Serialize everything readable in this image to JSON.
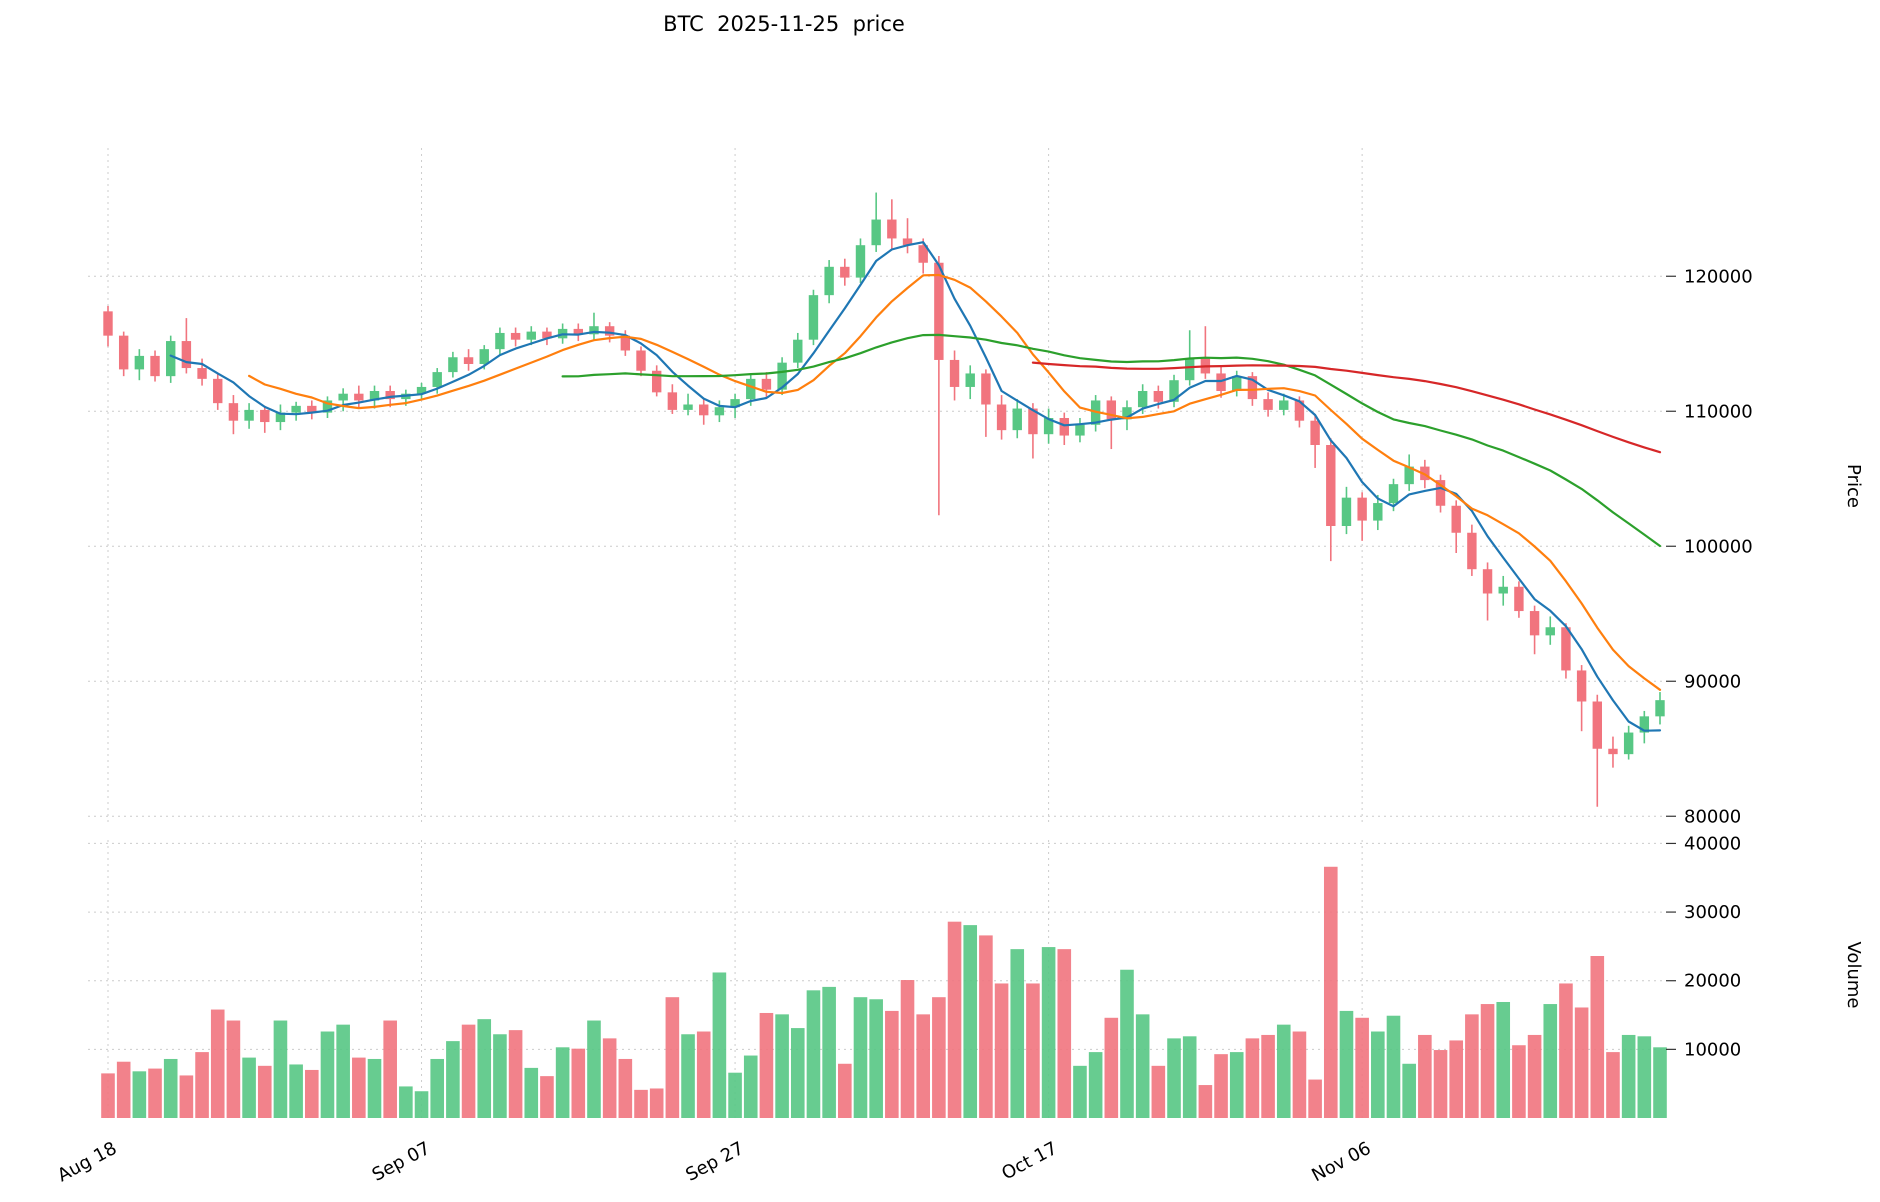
{
  "chart_data": {
    "type": "candlestick",
    "title": "BTC  2025-11-25  price",
    "price_axis_label": "Price",
    "volume_axis_label": "Volume",
    "price_ticks": [
      80000,
      90000,
      100000,
      110000,
      120000
    ],
    "volume_ticks": [
      10000,
      20000,
      30000,
      40000
    ],
    "x_ticks": [
      {
        "index": 0,
        "label": "Aug 18"
      },
      {
        "index": 20,
        "label": "Sep 07"
      },
      {
        "index": 40,
        "label": "Sep 27"
      },
      {
        "index": 60,
        "label": "Oct 17"
      },
      {
        "index": 80,
        "label": "Nov 06"
      }
    ],
    "price_axis_range": [
      79500,
      129500
    ],
    "volume_axis_range": [
      0,
      40500
    ],
    "grid": true,
    "legend": "none",
    "moving_averages": [
      {
        "name": "MA5",
        "window": 5,
        "color": "#1f77b4"
      },
      {
        "name": "MA10",
        "window": 10,
        "color": "#ff7f0e"
      },
      {
        "name": "MA30",
        "window": 30,
        "color": "#2ca02c"
      },
      {
        "name": "MA60",
        "window": 60,
        "color": "#d62728"
      }
    ],
    "colors": {
      "up": "#57c784",
      "down": "#f1747e",
      "grid": "#cccccc",
      "text": "#000000"
    },
    "columns": [
      "date",
      "open",
      "high",
      "low",
      "close",
      "volume"
    ],
    "ohlcv": [
      [
        "2025-08-18",
        117400,
        117800,
        114800,
        115600,
        6500
      ],
      [
        "2025-08-19",
        115600,
        115900,
        112600,
        113100,
        8200
      ],
      [
        "2025-08-20",
        113100,
        114600,
        112300,
        114100,
        6800
      ],
      [
        "2025-08-21",
        114100,
        114500,
        112200,
        112600,
        7200
      ],
      [
        "2025-08-22",
        112600,
        115600,
        112100,
        115200,
        8600
      ],
      [
        "2025-08-23",
        115200,
        116900,
        112800,
        113200,
        6200
      ],
      [
        "2025-08-24",
        113200,
        113900,
        111900,
        112400,
        9600
      ],
      [
        "2025-08-25",
        112400,
        112800,
        110100,
        110600,
        15800
      ],
      [
        "2025-08-26",
        110600,
        111200,
        108300,
        109300,
        14200
      ],
      [
        "2025-08-27",
        109300,
        110600,
        108700,
        110100,
        8800
      ],
      [
        "2025-08-28",
        110100,
        110400,
        108400,
        109200,
        7600
      ],
      [
        "2025-08-29",
        109200,
        110500,
        108600,
        109900,
        14200
      ],
      [
        "2025-08-30",
        109900,
        110700,
        109300,
        110400,
        7800
      ],
      [
        "2025-08-31",
        110400,
        110800,
        109400,
        109900,
        7000
      ],
      [
        "2025-09-01",
        109900,
        111100,
        109500,
        110800,
        12600
      ],
      [
        "2025-09-02",
        110800,
        111700,
        110000,
        111300,
        13600
      ],
      [
        "2025-09-03",
        111300,
        111900,
        110300,
        110800,
        8800
      ],
      [
        "2025-09-04",
        110800,
        111900,
        110200,
        111500,
        8600
      ],
      [
        "2025-09-05",
        111500,
        111900,
        110300,
        110900,
        14200
      ],
      [
        "2025-09-06",
        110900,
        111600,
        110400,
        111300,
        4600
      ],
      [
        "2025-09-07",
        111300,
        112100,
        110800,
        111800,
        3900
      ],
      [
        "2025-09-08",
        111800,
        113200,
        111300,
        112900,
        8600
      ],
      [
        "2025-09-09",
        112900,
        114400,
        112500,
        114000,
        11200
      ],
      [
        "2025-09-10",
        114000,
        114600,
        113000,
        113500,
        13600
      ],
      [
        "2025-09-11",
        113500,
        114900,
        113100,
        114600,
        14400
      ],
      [
        "2025-09-12",
        114600,
        116200,
        114200,
        115800,
        12200
      ],
      [
        "2025-09-13",
        115800,
        116200,
        114800,
        115300,
        12800
      ],
      [
        "2025-09-14",
        115300,
        116300,
        114900,
        115900,
        7300
      ],
      [
        "2025-09-15",
        115900,
        116200,
        114900,
        115400,
        6100
      ],
      [
        "2025-09-16",
        115400,
        116500,
        115000,
        116100,
        10300
      ],
      [
        "2025-09-17",
        116100,
        116500,
        115200,
        115700,
        10100
      ],
      [
        "2025-09-18",
        115700,
        117300,
        115300,
        116300,
        14200
      ],
      [
        "2025-09-19",
        116300,
        116600,
        115100,
        115600,
        11600
      ],
      [
        "2025-09-20",
        115600,
        116000,
        114100,
        114500,
        8600
      ],
      [
        "2025-09-21",
        114500,
        114800,
        112600,
        113000,
        4100
      ],
      [
        "2025-09-22",
        113000,
        113400,
        111100,
        111400,
        4300
      ],
      [
        "2025-09-23",
        111400,
        112000,
        109800,
        110100,
        17600
      ],
      [
        "2025-09-24",
        110100,
        111300,
        109700,
        110500,
        12200
      ],
      [
        "2025-09-25",
        110500,
        110900,
        109000,
        109700,
        12600
      ],
      [
        "2025-09-26",
        109700,
        110800,
        109200,
        110300,
        21200
      ],
      [
        "2025-09-27",
        110300,
        111300,
        109500,
        110900,
        6600
      ],
      [
        "2025-09-28",
        110900,
        112700,
        110400,
        112400,
        9100
      ],
      [
        "2025-09-29",
        112400,
        112900,
        111000,
        111600,
        15300
      ],
      [
        "2025-09-30",
        111600,
        114000,
        111200,
        113600,
        15100
      ],
      [
        "2025-10-01",
        113600,
        115800,
        113200,
        115300,
        13100
      ],
      [
        "2025-10-02",
        115300,
        119000,
        114900,
        118600,
        18600
      ],
      [
        "2025-10-03",
        118600,
        121200,
        118000,
        120700,
        19100
      ],
      [
        "2025-10-04",
        120700,
        121300,
        119300,
        119900,
        7900
      ],
      [
        "2025-10-05",
        119900,
        122800,
        119500,
        122300,
        17600
      ],
      [
        "2025-10-06",
        122300,
        126200,
        121800,
        124200,
        17300
      ],
      [
        "2025-10-07",
        124200,
        125700,
        122000,
        122800,
        15600
      ],
      [
        "2025-10-08",
        122800,
        124300,
        121700,
        122300,
        20100
      ],
      [
        "2025-10-09",
        122300,
        122800,
        120200,
        121000,
        15100
      ],
      [
        "2025-10-10",
        121000,
        121500,
        102300,
        113800,
        17600
      ],
      [
        "2025-10-11",
        113800,
        114500,
        110800,
        111800,
        28600
      ],
      [
        "2025-10-12",
        111800,
        113400,
        110900,
        112800,
        28100
      ],
      [
        "2025-10-13",
        112800,
        113100,
        108100,
        110500,
        26600
      ],
      [
        "2025-10-14",
        110500,
        111200,
        107900,
        108600,
        19600
      ],
      [
        "2025-10-15",
        108600,
        110900,
        108000,
        110200,
        24600
      ],
      [
        "2025-10-16",
        110200,
        110600,
        106500,
        108300,
        19600
      ],
      [
        "2025-10-17",
        108300,
        110200,
        107600,
        109500,
        24900
      ],
      [
        "2025-10-18",
        109500,
        109900,
        107500,
        108200,
        24600
      ],
      [
        "2025-10-19",
        108200,
        109500,
        107700,
        109000,
        7600
      ],
      [
        "2025-10-20",
        109000,
        111200,
        108500,
        110800,
        9600
      ],
      [
        "2025-10-21",
        110800,
        111100,
        107200,
        109400,
        14600
      ],
      [
        "2025-10-22",
        109400,
        110800,
        108600,
        110300,
        21600
      ],
      [
        "2025-10-23",
        110300,
        112000,
        109800,
        111500,
        15100
      ],
      [
        "2025-10-24",
        111500,
        111900,
        110200,
        110700,
        7600
      ],
      [
        "2025-10-25",
        110700,
        112700,
        110300,
        112300,
        11600
      ],
      [
        "2025-10-26",
        112300,
        116000,
        111900,
        113900,
        11900
      ],
      [
        "2025-10-27",
        113900,
        116300,
        112400,
        112800,
        4800
      ],
      [
        "2025-10-28",
        112800,
        113300,
        111000,
        111500,
        9300
      ],
      [
        "2025-10-29",
        111500,
        113000,
        111100,
        112600,
        9600
      ],
      [
        "2025-10-30",
        112600,
        112900,
        110400,
        110900,
        11600
      ],
      [
        "2025-10-31",
        110900,
        111400,
        109600,
        110100,
        12100
      ],
      [
        "2025-11-01",
        110100,
        111300,
        109700,
        110800,
        13600
      ],
      [
        "2025-11-02",
        110800,
        111100,
        108800,
        109300,
        12600
      ],
      [
        "2025-11-03",
        109300,
        109700,
        105800,
        107500,
        5600
      ],
      [
        "2025-11-04",
        107500,
        108000,
        98900,
        101500,
        36600
      ],
      [
        "2025-11-05",
        101500,
        104400,
        100900,
        103600,
        15600
      ],
      [
        "2025-11-06",
        103600,
        104000,
        100400,
        101900,
        14600
      ],
      [
        "2025-11-07",
        101900,
        103800,
        101200,
        103200,
        12600
      ],
      [
        "2025-11-08",
        103200,
        105000,
        102600,
        104600,
        14900
      ],
      [
        "2025-11-09",
        104600,
        106800,
        104100,
        105900,
        7900
      ],
      [
        "2025-11-10",
        105900,
        106400,
        104300,
        104900,
        12100
      ],
      [
        "2025-11-11",
        104900,
        105300,
        102500,
        103000,
        9900
      ],
      [
        "2025-11-12",
        103000,
        103400,
        99500,
        101000,
        11300
      ],
      [
        "2025-11-13",
        101000,
        101600,
        97800,
        98300,
        15100
      ],
      [
        "2025-11-14",
        98300,
        98800,
        94500,
        96500,
        16600
      ],
      [
        "2025-11-15",
        96500,
        97800,
        95600,
        97000,
        16900
      ],
      [
        "2025-11-16",
        97000,
        97400,
        94700,
        95200,
        10600
      ],
      [
        "2025-11-17",
        95200,
        95600,
        92000,
        93400,
        12100
      ],
      [
        "2025-11-18",
        93400,
        94800,
        92700,
        94000,
        16600
      ],
      [
        "2025-11-19",
        94000,
        94300,
        90200,
        90800,
        19600
      ],
      [
        "2025-11-20",
        90800,
        91200,
        86300,
        88500,
        16100
      ],
      [
        "2025-11-21",
        88500,
        89000,
        80700,
        85000,
        23600
      ],
      [
        "2025-11-22",
        85000,
        85900,
        83600,
        84600,
        9600
      ],
      [
        "2025-11-23",
        84600,
        86700,
        84200,
        86200,
        12100
      ],
      [
        "2025-11-24",
        86200,
        87800,
        85400,
        87400,
        11900
      ],
      [
        "2025-11-25",
        87400,
        89200,
        86800,
        88600,
        10300
      ]
    ]
  }
}
